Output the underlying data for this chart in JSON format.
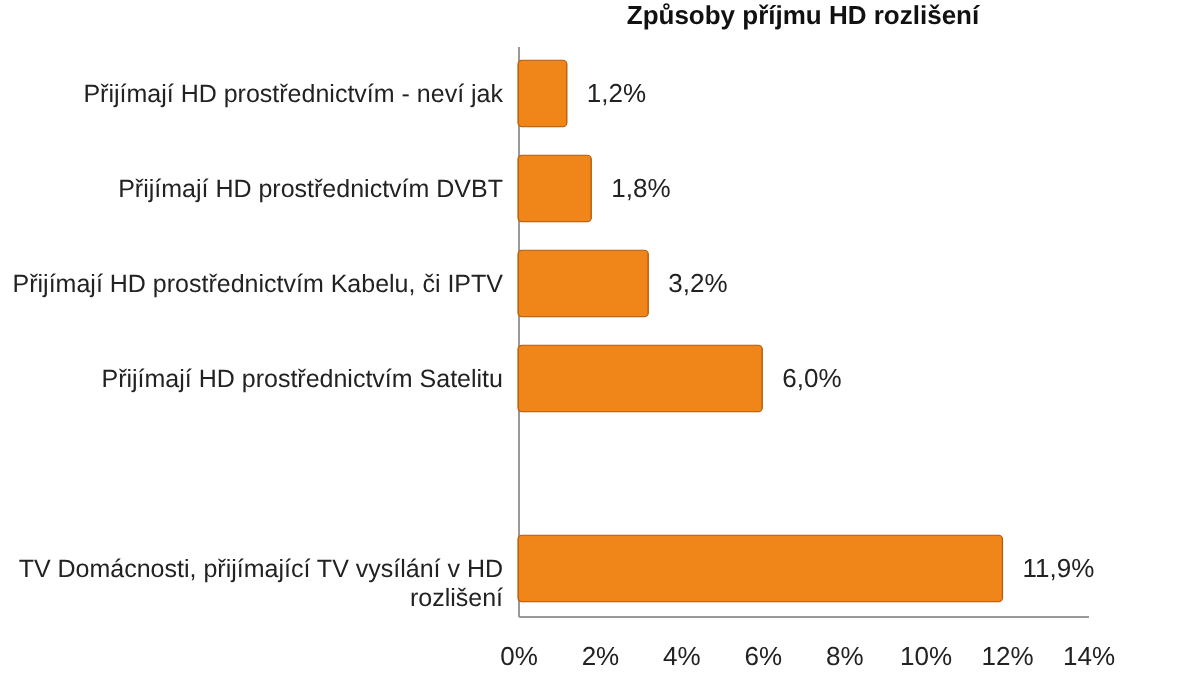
{
  "chart_data": {
    "type": "bar",
    "orientation": "horizontal",
    "title": "Způsoby příjmu HD rozlišení",
    "categories": [
      "Přijímají HD prostřednictvím - neví jak",
      "Přijímají HD prostřednictvím DVBT",
      "Přijímají HD prostřednictvím Kabelu, či IPTV",
      "Přijímají HD prostřednictvím Satelitu",
      null,
      "TV Domácnosti,  přijímající TV vysílání v HD rozlišení"
    ],
    "values": [
      1.2,
      1.8,
      3.2,
      6.0,
      null,
      11.9
    ],
    "value_labels": [
      "1,2%",
      "1,8%",
      "3,2%",
      "6,0%",
      null,
      "11,9%"
    ],
    "color": "#f0861a",
    "xlim": [
      0,
      14
    ],
    "xticks": [
      {
        "value": 0,
        "label": "0%"
      },
      {
        "value": 2,
        "label": "2%"
      },
      {
        "value": 4,
        "label": "4%"
      },
      {
        "value": 6,
        "label": "6%"
      },
      {
        "value": 8,
        "label": "8%"
      },
      {
        "value": 10,
        "label": "10%"
      },
      {
        "value": 12,
        "label": "12%"
      },
      {
        "value": 14,
        "label": "14%"
      }
    ],
    "grid": false
  }
}
